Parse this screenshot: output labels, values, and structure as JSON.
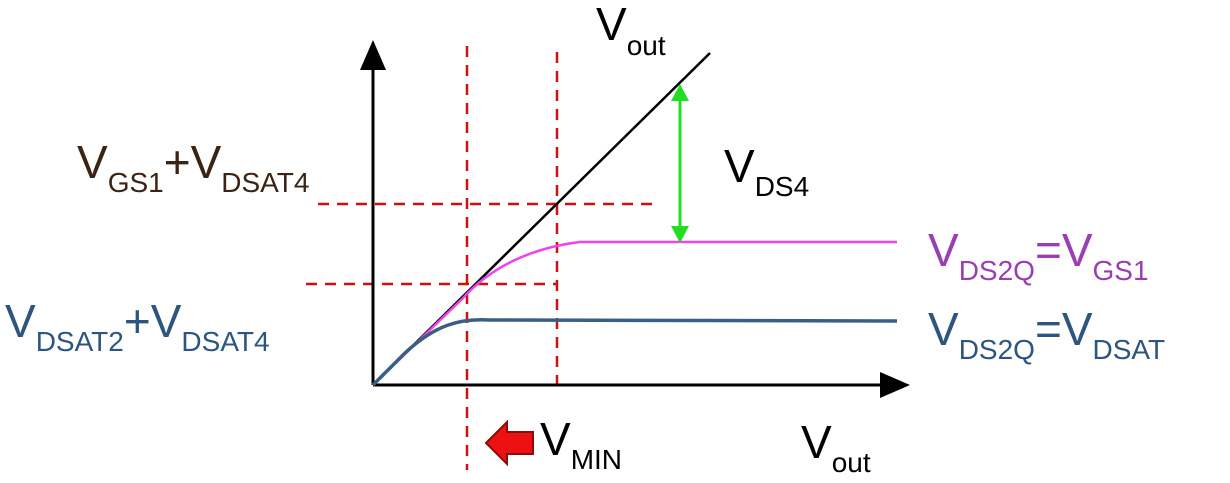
{
  "labels": {
    "vout_top": {
      "main": "V",
      "sub": "out"
    },
    "vout_axis": {
      "main": "V",
      "sub": "out"
    },
    "vds4": {
      "main": "V",
      "sub": "DS4"
    },
    "vmin": {
      "main": "V",
      "sub": "MIN"
    },
    "vgs_vdsat": {
      "v1": "V",
      "s1": "GS1",
      "plus": "+",
      "v2": "V",
      "s2": "DSAT4"
    },
    "vdsat_sum": {
      "v1": "V",
      "s1": "DSAT2",
      "plus": "+",
      "v2": "V",
      "s2": "DSAT4"
    },
    "vds2q_gs1": {
      "v1": "V",
      "s1": "DS2Q",
      "eq": "=",
      "v2": "V",
      "s2": "GS1"
    },
    "vds2q_dsat": {
      "v1": "V",
      "s1": "DS2Q",
      "eq": "=",
      "v2": "V",
      "s2": "DSAT"
    }
  },
  "colors": {
    "axis": "#000000",
    "identity_line": "#000000",
    "magenta_curve": "#ee44ee",
    "blue_curve": "#3a5f85",
    "dashed_guides": "#cc1111",
    "green_arrow": "#22dd22",
    "red_arrow": "#ee1111",
    "brown_text": "#3b2414",
    "blue_text": "#2c5680",
    "purple_text": "#9a3fb3"
  },
  "icons": {
    "axis_arrowheads": "triangle-arrowhead-icon",
    "vds4_indicator": "double-headed-arrow-icon",
    "vmin_indicator": "left-arrow-icon"
  }
}
